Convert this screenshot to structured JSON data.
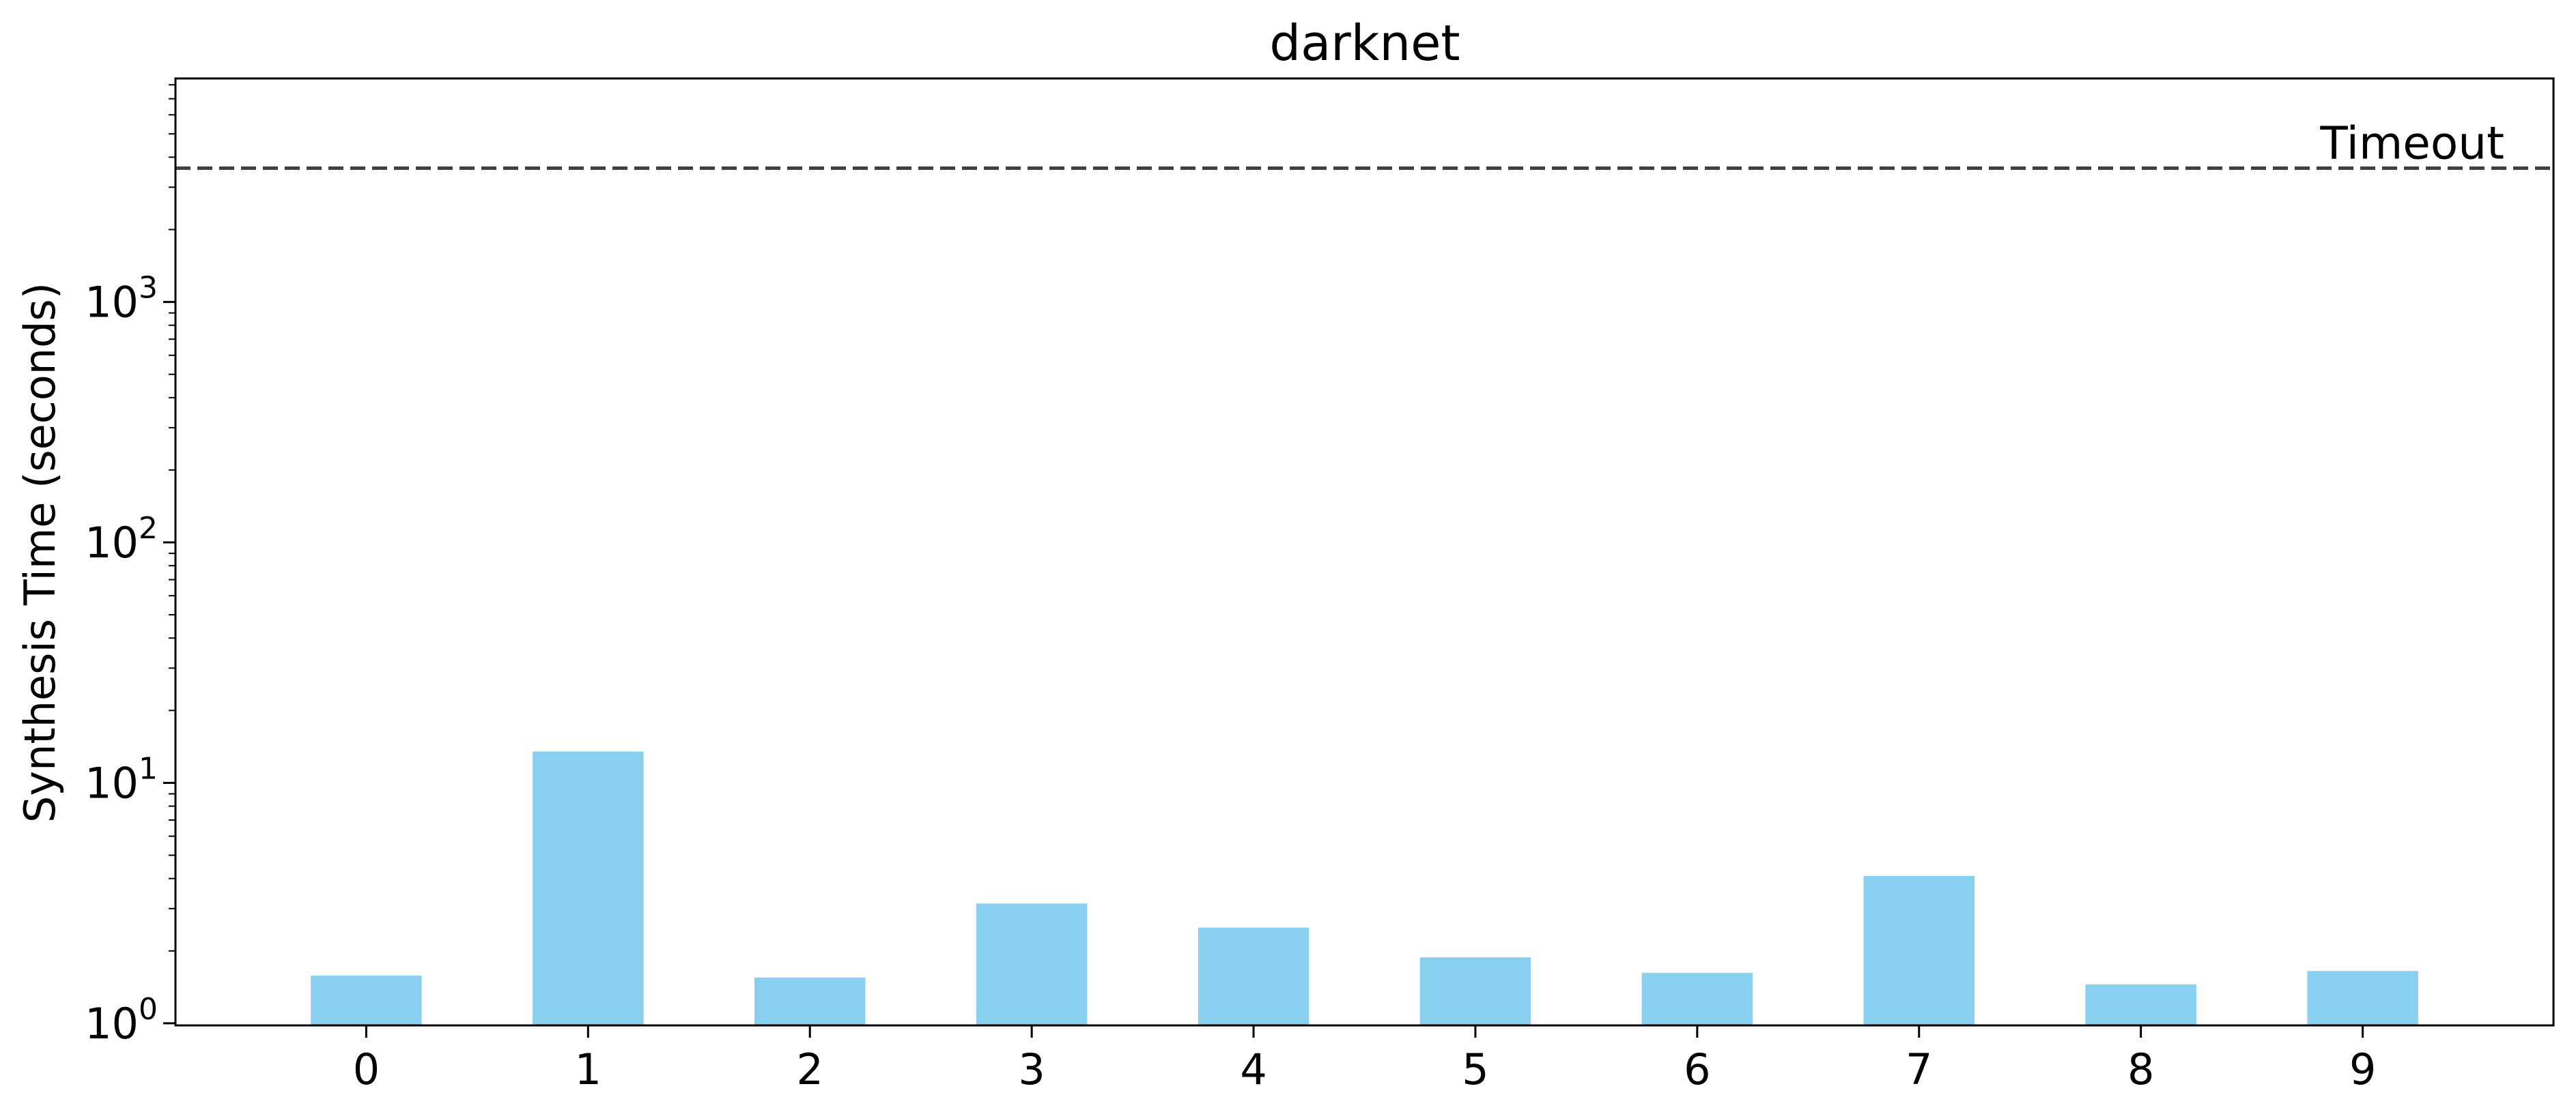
{
  "chart_data": {
    "type": "bar",
    "title": "darknet",
    "xlabel": "",
    "ylabel": "Synthesis Time (seconds)",
    "yscale": "log",
    "ylim": [
      0.98,
      8500
    ],
    "categories": [
      "0",
      "1",
      "2",
      "3",
      "4",
      "5",
      "6",
      "7",
      "8",
      "9"
    ],
    "values": [
      1.58,
      13.5,
      1.55,
      3.15,
      2.5,
      1.88,
      1.62,
      4.1,
      1.45,
      1.65
    ],
    "bar_color": "#89CFF0",
    "yticks": [
      {
        "value": 1,
        "base": "10",
        "exp": "0"
      },
      {
        "value": 10,
        "base": "10",
        "exp": "1"
      },
      {
        "value": 100,
        "base": "10",
        "exp": "2"
      },
      {
        "value": 1000,
        "base": "10",
        "exp": "3"
      }
    ],
    "reference_line": {
      "value": 3600,
      "label": "Timeout",
      "style": "dashed",
      "color": "#404040"
    },
    "grid": false,
    "legend": "none"
  }
}
